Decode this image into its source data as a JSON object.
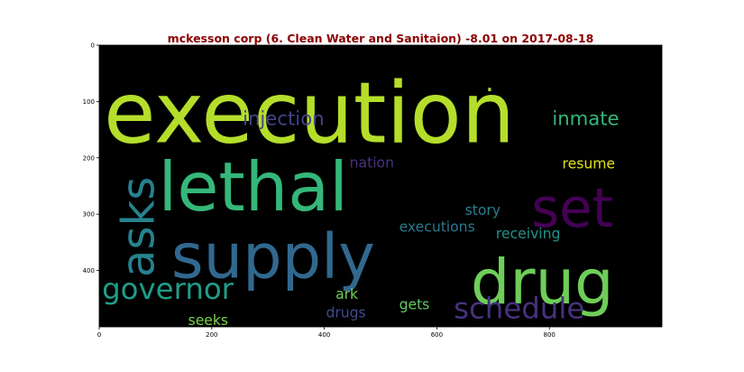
{
  "chart_data": {
    "type": "wordcloud",
    "title": "mckesson corp (6. Clean Water and Sanitaion) -8.01 on 2017-08-18",
    "title_color": "#8b0000",
    "background": "#000000",
    "xlim": [
      0,
      1000
    ],
    "ylim": [
      500,
      0
    ],
    "xticks": [
      0,
      200,
      400,
      600,
      800
    ],
    "yticks": [
      0,
      100,
      200,
      300,
      400
    ],
    "words": [
      {
        "text": "execution",
        "size": 150,
        "x": 8,
        "y": 172,
        "color": "#b5de2b",
        "rotate": 0
      },
      {
        "text": "lethal",
        "size": 120,
        "x": 105,
        "y": 293,
        "color": "#35b779",
        "rotate": 0
      },
      {
        "text": "supply",
        "size": 110,
        "x": 128,
        "y": 413,
        "color": "#31688e",
        "rotate": 0
      },
      {
        "text": "drug",
        "size": 110,
        "x": 660,
        "y": 458,
        "color": "#6ece58",
        "rotate": 0
      },
      {
        "text": "set",
        "size": 95,
        "x": 768,
        "y": 322,
        "color": "#440154",
        "rotate": 0
      },
      {
        "text": "asks",
        "size": 80,
        "x": 97,
        "y": 412,
        "color": "#26828e",
        "rotate": -90
      },
      {
        "text": "governor",
        "size": 52,
        "x": 5,
        "y": 450,
        "color": "#1f9e89",
        "rotate": 0
      },
      {
        "text": "schedule",
        "size": 52,
        "x": 630,
        "y": 485,
        "color": "#46327e",
        "rotate": 0
      },
      {
        "text": "injection",
        "size": 34,
        "x": 255,
        "y": 142,
        "color": "#414487",
        "rotate": 0
      },
      {
        "text": "inmate",
        "size": 34,
        "x": 805,
        "y": 142,
        "color": "#35b779",
        "rotate": 0
      },
      {
        "text": "nation",
        "size": 25,
        "x": 445,
        "y": 217,
        "color": "#46327e",
        "rotate": 0
      },
      {
        "text": "resume",
        "size": 25,
        "x": 823,
        "y": 219,
        "color": "#dde318",
        "rotate": 0
      },
      {
        "text": "story",
        "size": 25,
        "x": 650,
        "y": 301,
        "color": "#287d8e",
        "rotate": 0
      },
      {
        "text": "executions",
        "size": 25,
        "x": 533,
        "y": 331,
        "color": "#2a788e",
        "rotate": 0
      },
      {
        "text": "receiving",
        "size": 25,
        "x": 705,
        "y": 343,
        "color": "#21918c",
        "rotate": 0
      },
      {
        "text": "ark",
        "size": 25,
        "x": 420,
        "y": 450,
        "color": "#6ece58",
        "rotate": 0
      },
      {
        "text": "gets",
        "size": 25,
        "x": 533,
        "y": 469,
        "color": "#5ec962",
        "rotate": 0
      },
      {
        "text": "drugs",
        "size": 25,
        "x": 403,
        "y": 483,
        "color": "#3e4a89",
        "rotate": 0
      },
      {
        "text": "seeks",
        "size": 25,
        "x": 158,
        "y": 497,
        "color": "#7ad151",
        "rotate": 0
      },
      {
        "text": "·",
        "size": 48,
        "x": 686,
        "y": 95,
        "color": "#b5de2b",
        "rotate": 0
      }
    ]
  }
}
